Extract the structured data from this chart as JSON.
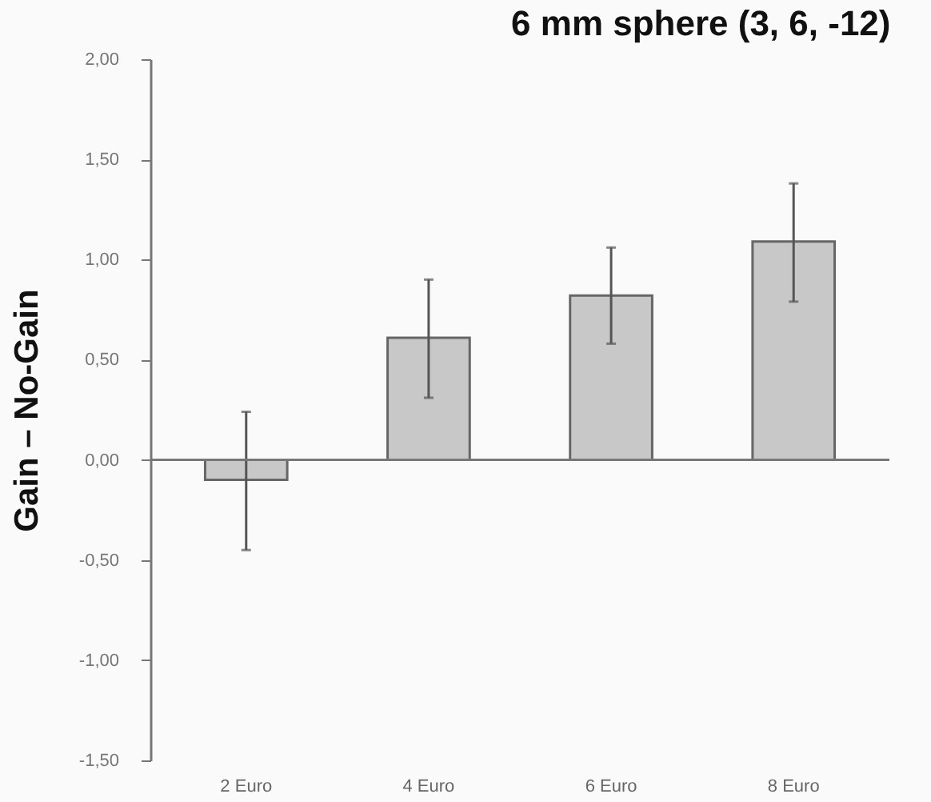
{
  "chart_data": {
    "type": "bar",
    "title": "6 mm sphere (3, 6, -12)",
    "ylabel": "Gain – No-Gain",
    "categories": [
      "2 Euro",
      "4 Euro",
      "6 Euro",
      "8 Euro"
    ],
    "values": [
      -0.1,
      0.61,
      0.82,
      1.09
    ],
    "color": "#c8c8c8",
    "errors": [
      [
        -0.45,
        0.24
      ],
      [
        0.31,
        0.9
      ],
      [
        0.58,
        1.06
      ],
      [
        0.79,
        1.38
      ]
    ],
    "ylim": [
      -1.5,
      2
    ],
    "yticks": [
      {
        "value": -1.5,
        "label": "-1,50"
      },
      {
        "value": -1,
        "label": "-1,00"
      },
      {
        "value": -0.5,
        "label": "-0,50"
      },
      {
        "value": 0,
        "label": "0,00"
      },
      {
        "value": 0.5,
        "label": "0,50"
      },
      {
        "value": 1,
        "label": "1,00"
      },
      {
        "value": 1.5,
        "label": "1,50"
      },
      {
        "value": 2,
        "label": "2,00"
      }
    ],
    "ref_lines": [
      {
        "axis": "y",
        "value": 0,
        "color": "#777777"
      }
    ],
    "grid": false
  }
}
